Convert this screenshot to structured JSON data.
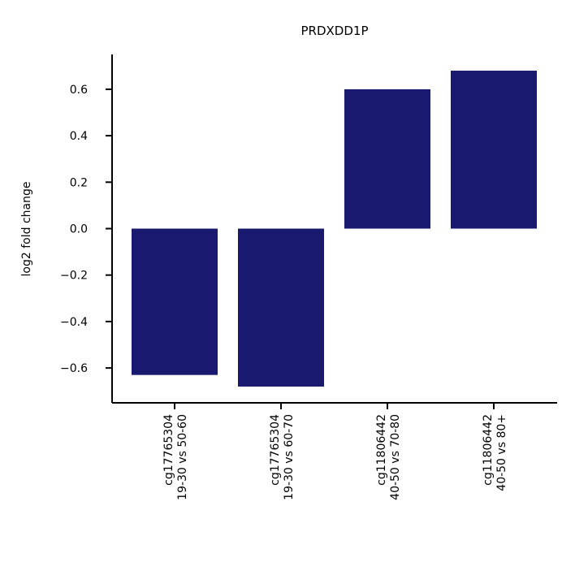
{
  "chart_data": {
    "type": "bar",
    "title": "PRDXDD1P",
    "xlabel": "",
    "ylabel": "log2 fold change",
    "categories": [
      [
        "cg17765304",
        "19-30 vs 50-60"
      ],
      [
        "cg17765304",
        "19-30 vs 60-70"
      ],
      [
        "cg11806442",
        "40-50 vs 70-80"
      ],
      [
        "cg11806442",
        "40-50 vs 80+"
      ]
    ],
    "values": [
      -0.63,
      -0.68,
      0.6,
      0.68
    ],
    "ylim": [
      -0.75,
      0.75
    ],
    "yticks": [
      -0.6,
      -0.4,
      -0.2,
      0.0,
      0.2,
      0.4,
      0.6
    ],
    "ytick_labels": [
      "−0.6",
      "−0.4",
      "−0.2",
      "0.0",
      "0.2",
      "0.4",
      "0.6"
    ],
    "bar_color": "#191970",
    "grid": false,
    "legend": "none"
  }
}
